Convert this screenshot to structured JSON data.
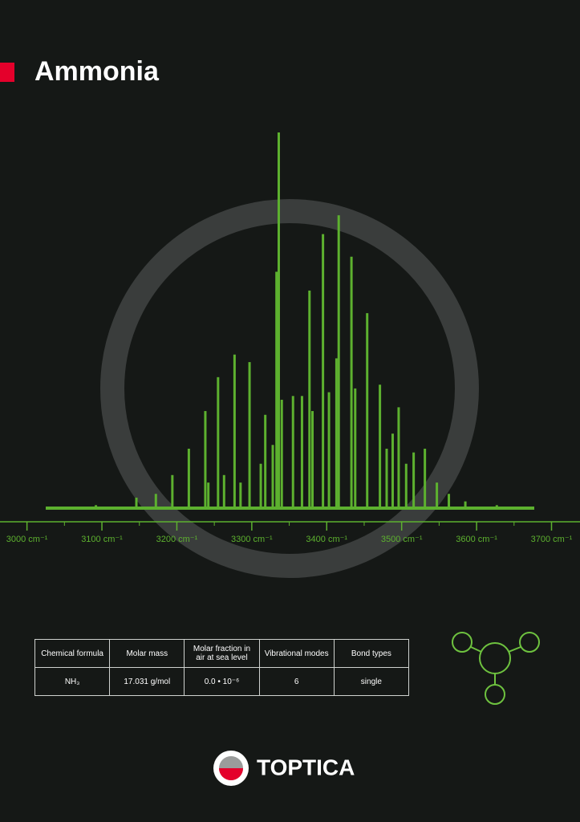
{
  "header": {
    "title": "Ammonia"
  },
  "chart_data": {
    "type": "spectrum",
    "color": "#5db12f",
    "x": [
      3336,
      3333,
      3416,
      3395,
      3377,
      3433,
      3454,
      3277,
      3255,
      3297,
      3238,
      3471,
      3496,
      3438,
      3355,
      3367,
      3403,
      3413,
      3318,
      3381,
      3216,
      3194,
      3531,
      3488,
      3516,
      3480,
      3506,
      3547,
      3340,
      3328,
      3285,
      3312,
      3263,
      3242,
      3172,
      3146,
      3563,
      3585,
      3092,
      3627
    ],
    "values": [
      100,
      63,
      78,
      73,
      58,
      67,
      52,
      41,
      35,
      39,
      26,
      33,
      27,
      32,
      30,
      30,
      31,
      40,
      25,
      26,
      16,
      9,
      16,
      20,
      15,
      16,
      12,
      7,
      29,
      17,
      7,
      12,
      9,
      7,
      4,
      3,
      4,
      2,
      1,
      1
    ],
    "ylim": [
      0,
      100
    ],
    "xlim": [
      2964,
      3738
    ],
    "xticks": [
      {
        "value": 3000,
        "label": "3000 cm⁻¹"
      },
      {
        "value": 3100,
        "label": "3100 cm⁻¹"
      },
      {
        "value": 3200,
        "label": "3200 cm⁻¹"
      },
      {
        "value": 3300,
        "label": "3300 cm⁻¹"
      },
      {
        "value": 3400,
        "label": "3400 cm⁻¹"
      },
      {
        "value": 3500,
        "label": "3500 cm⁻¹"
      },
      {
        "value": 3600,
        "label": "3600 cm⁻¹"
      },
      {
        "value": 3700,
        "label": "3700 cm⁻¹"
      }
    ],
    "xminor_ticks": [
      3050,
      3150,
      3250,
      3350,
      3450,
      3550,
      3650
    ]
  },
  "table": {
    "header": [
      "Chemical formula",
      "Molar mass",
      "Molar fraction in air at sea level",
      "Vibrational modes",
      "Bond types"
    ],
    "rows": [
      [
        "NH₃",
        "17.031 g/mol",
        "0.0 • 10⁻⁶",
        "6",
        "single"
      ]
    ]
  },
  "logo": {
    "text": "TOPTICA"
  }
}
